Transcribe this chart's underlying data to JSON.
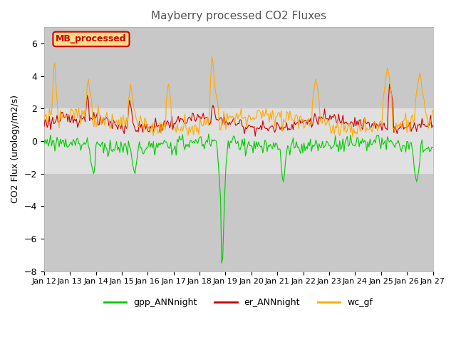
{
  "title": "Mayberry processed CO2 Fluxes",
  "ylabel": "CO2 Flux (urology/m2/s)",
  "xlabel": "",
  "ylim": [
    -8,
    7
  ],
  "yticks": [
    -8,
    -6,
    -4,
    -2,
    0,
    2,
    4,
    6
  ],
  "n_points": 360,
  "xtick_labels": [
    "Jan 12",
    "Jan 13",
    "Jan 14",
    "Jan 15",
    "Jan 16",
    "Jan 17",
    "Jan 18",
    "Jan 19",
    "Jan 20",
    "Jan 21",
    "Jan 22",
    "Jan 23",
    "Jan 24",
    "Jan 25",
    "Jan 26",
    "Jan 27"
  ],
  "colors": {
    "gpp": "#00cc00",
    "er": "#cc0000",
    "wc": "#ffaa00"
  },
  "legend_label": "MB_processed",
  "legend_box_color": "#ffdd88",
  "legend_box_edge": "#cc0000",
  "shading_color": "#e0e0e0",
  "background_outside": "#c8c8c8",
  "title_color": "#555555"
}
